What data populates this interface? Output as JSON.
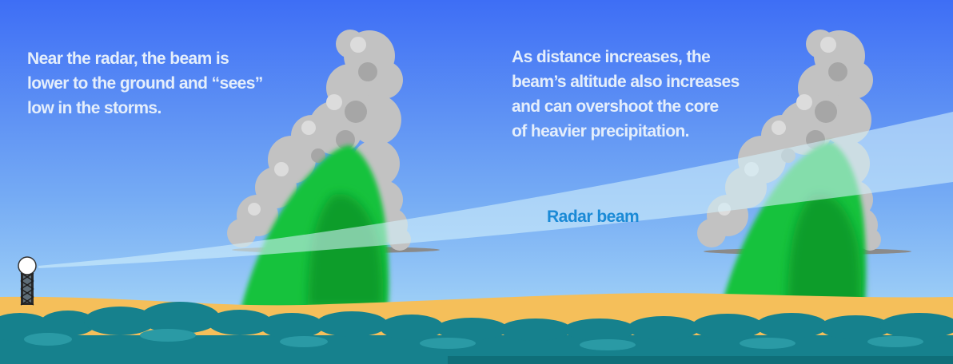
{
  "captions": {
    "near": "Near the radar, the beam is\nlower to the ground and “sees”\nlow in the storms.",
    "far": "As distance increases, the\nbeam’s altitude also increases\nand can overshoot the core\nof heavier precipitation."
  },
  "beam": {
    "label": "Radar beam"
  },
  "colors": {
    "sky_top": "#3e6ef5",
    "sky_bottom": "#b3e2f8",
    "ground": "#f5bf5a",
    "foliage": "#16818d",
    "precipitation": "#14c23c",
    "precipitation_core": "#0a9d29",
    "cloud": "#c4c4c4",
    "beam": "#d4f1fb",
    "beam_label": "#1a8ad6",
    "caption_text": "#e4eefb"
  }
}
